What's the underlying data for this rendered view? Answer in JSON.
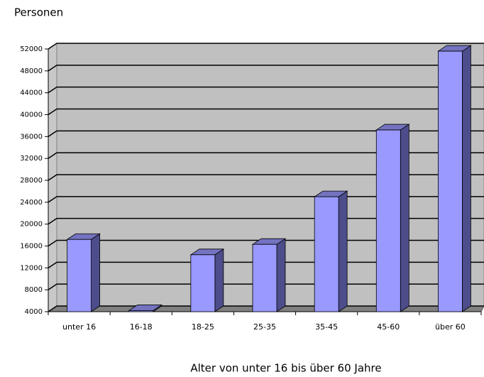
{
  "chart_data": {
    "type": "bar",
    "title": "Personen",
    "x_label": "Alter von unter 16 bis über 60 Jahre",
    "categories": [
      "unter 16",
      "16-18",
      "18-25",
      "25-35",
      "35-45",
      "45-60",
      "über 60"
    ],
    "values": [
      17200,
      4200,
      14400,
      16300,
      25000,
      37200,
      51600
    ],
    "color": "#9999ff",
    "ylim": [
      4000,
      52000
    ],
    "yticks": [
      4000,
      8000,
      12000,
      16000,
      20000,
      24000,
      28000,
      32000,
      36000,
      40000,
      44000,
      48000,
      52000
    ],
    "grid": true
  }
}
